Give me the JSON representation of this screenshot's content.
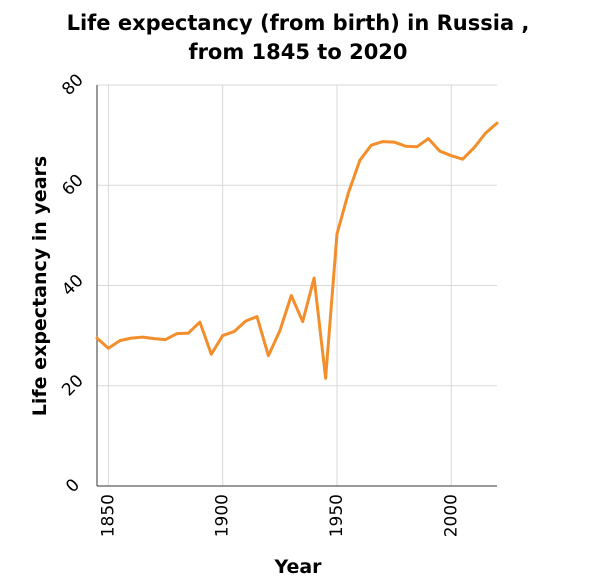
{
  "chart_data": {
    "type": "line",
    "title_line1": "Life expectancy (from birth) in Russia ,",
    "title_line2": "from 1845 to 2020",
    "xlabel": "Year",
    "ylabel": "Life expectancy in years",
    "xlim": [
      1845,
      2020
    ],
    "ylim": [
      0,
      80
    ],
    "xticks": [
      1850,
      1900,
      1950,
      2000
    ],
    "yticks": [
      0,
      20,
      40,
      60,
      80
    ],
    "grid": true,
    "series": [
      {
        "color": "#f28e2b",
        "x": [
          1845,
          1850,
          1855,
          1860,
          1865,
          1870,
          1875,
          1880,
          1885,
          1890,
          1895,
          1900,
          1905,
          1910,
          1915,
          1920,
          1925,
          1930,
          1935,
          1940,
          1945,
          1950,
          1955,
          1960,
          1965,
          1970,
          1975,
          1980,
          1985,
          1990,
          1995,
          2000,
          2005,
          2010,
          2015,
          2020
        ],
        "y": [
          29.5,
          27.5,
          29,
          29.5,
          29.7,
          29.4,
          29.2,
          30.4,
          30.5,
          32.7,
          26.3,
          30,
          30.8,
          32.9,
          33.8,
          26,
          31,
          38,
          32.8,
          41.5,
          21.5,
          50.3,
          58.5,
          65,
          68,
          68.7,
          68.6,
          67.8,
          67.7,
          69.3,
          66.8,
          65.9,
          65.2,
          67.5,
          70.4,
          72.4
        ]
      }
    ]
  }
}
